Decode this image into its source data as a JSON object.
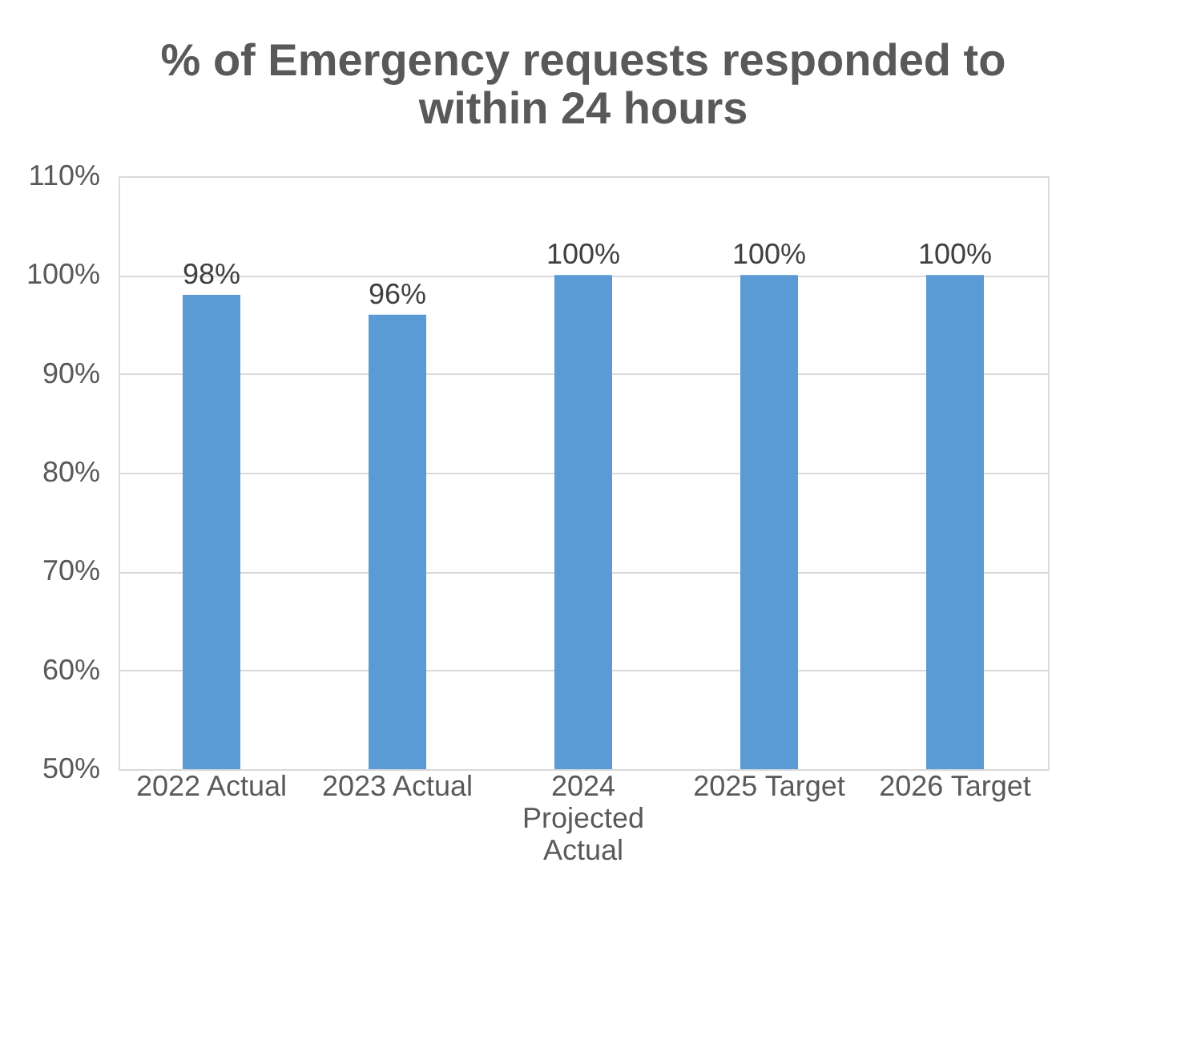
{
  "chart_data": {
    "type": "bar",
    "title": "% of Emergency requests responded to within 24 hours",
    "categories": [
      "2022 Actual",
      "2023 Actual",
      "2024 Projected Actual",
      "2025 Target",
      "2026 Target"
    ],
    "values": [
      98,
      96,
      100,
      100,
      100
    ],
    "color": "#5b9bd5",
    "value_labels": [
      "98%",
      "96%",
      "100%",
      "100%",
      "100%"
    ],
    "ylim": [
      50,
      110
    ],
    "yticks": [
      {
        "value": 50,
        "label": "50%"
      },
      {
        "value": 60,
        "label": "60%"
      },
      {
        "value": 70,
        "label": "70%"
      },
      {
        "value": 80,
        "label": "80%"
      },
      {
        "value": 90,
        "label": "90%"
      },
      {
        "value": 100,
        "label": "100%"
      },
      {
        "value": 110,
        "label": "110%"
      }
    ],
    "grid": "y"
  }
}
